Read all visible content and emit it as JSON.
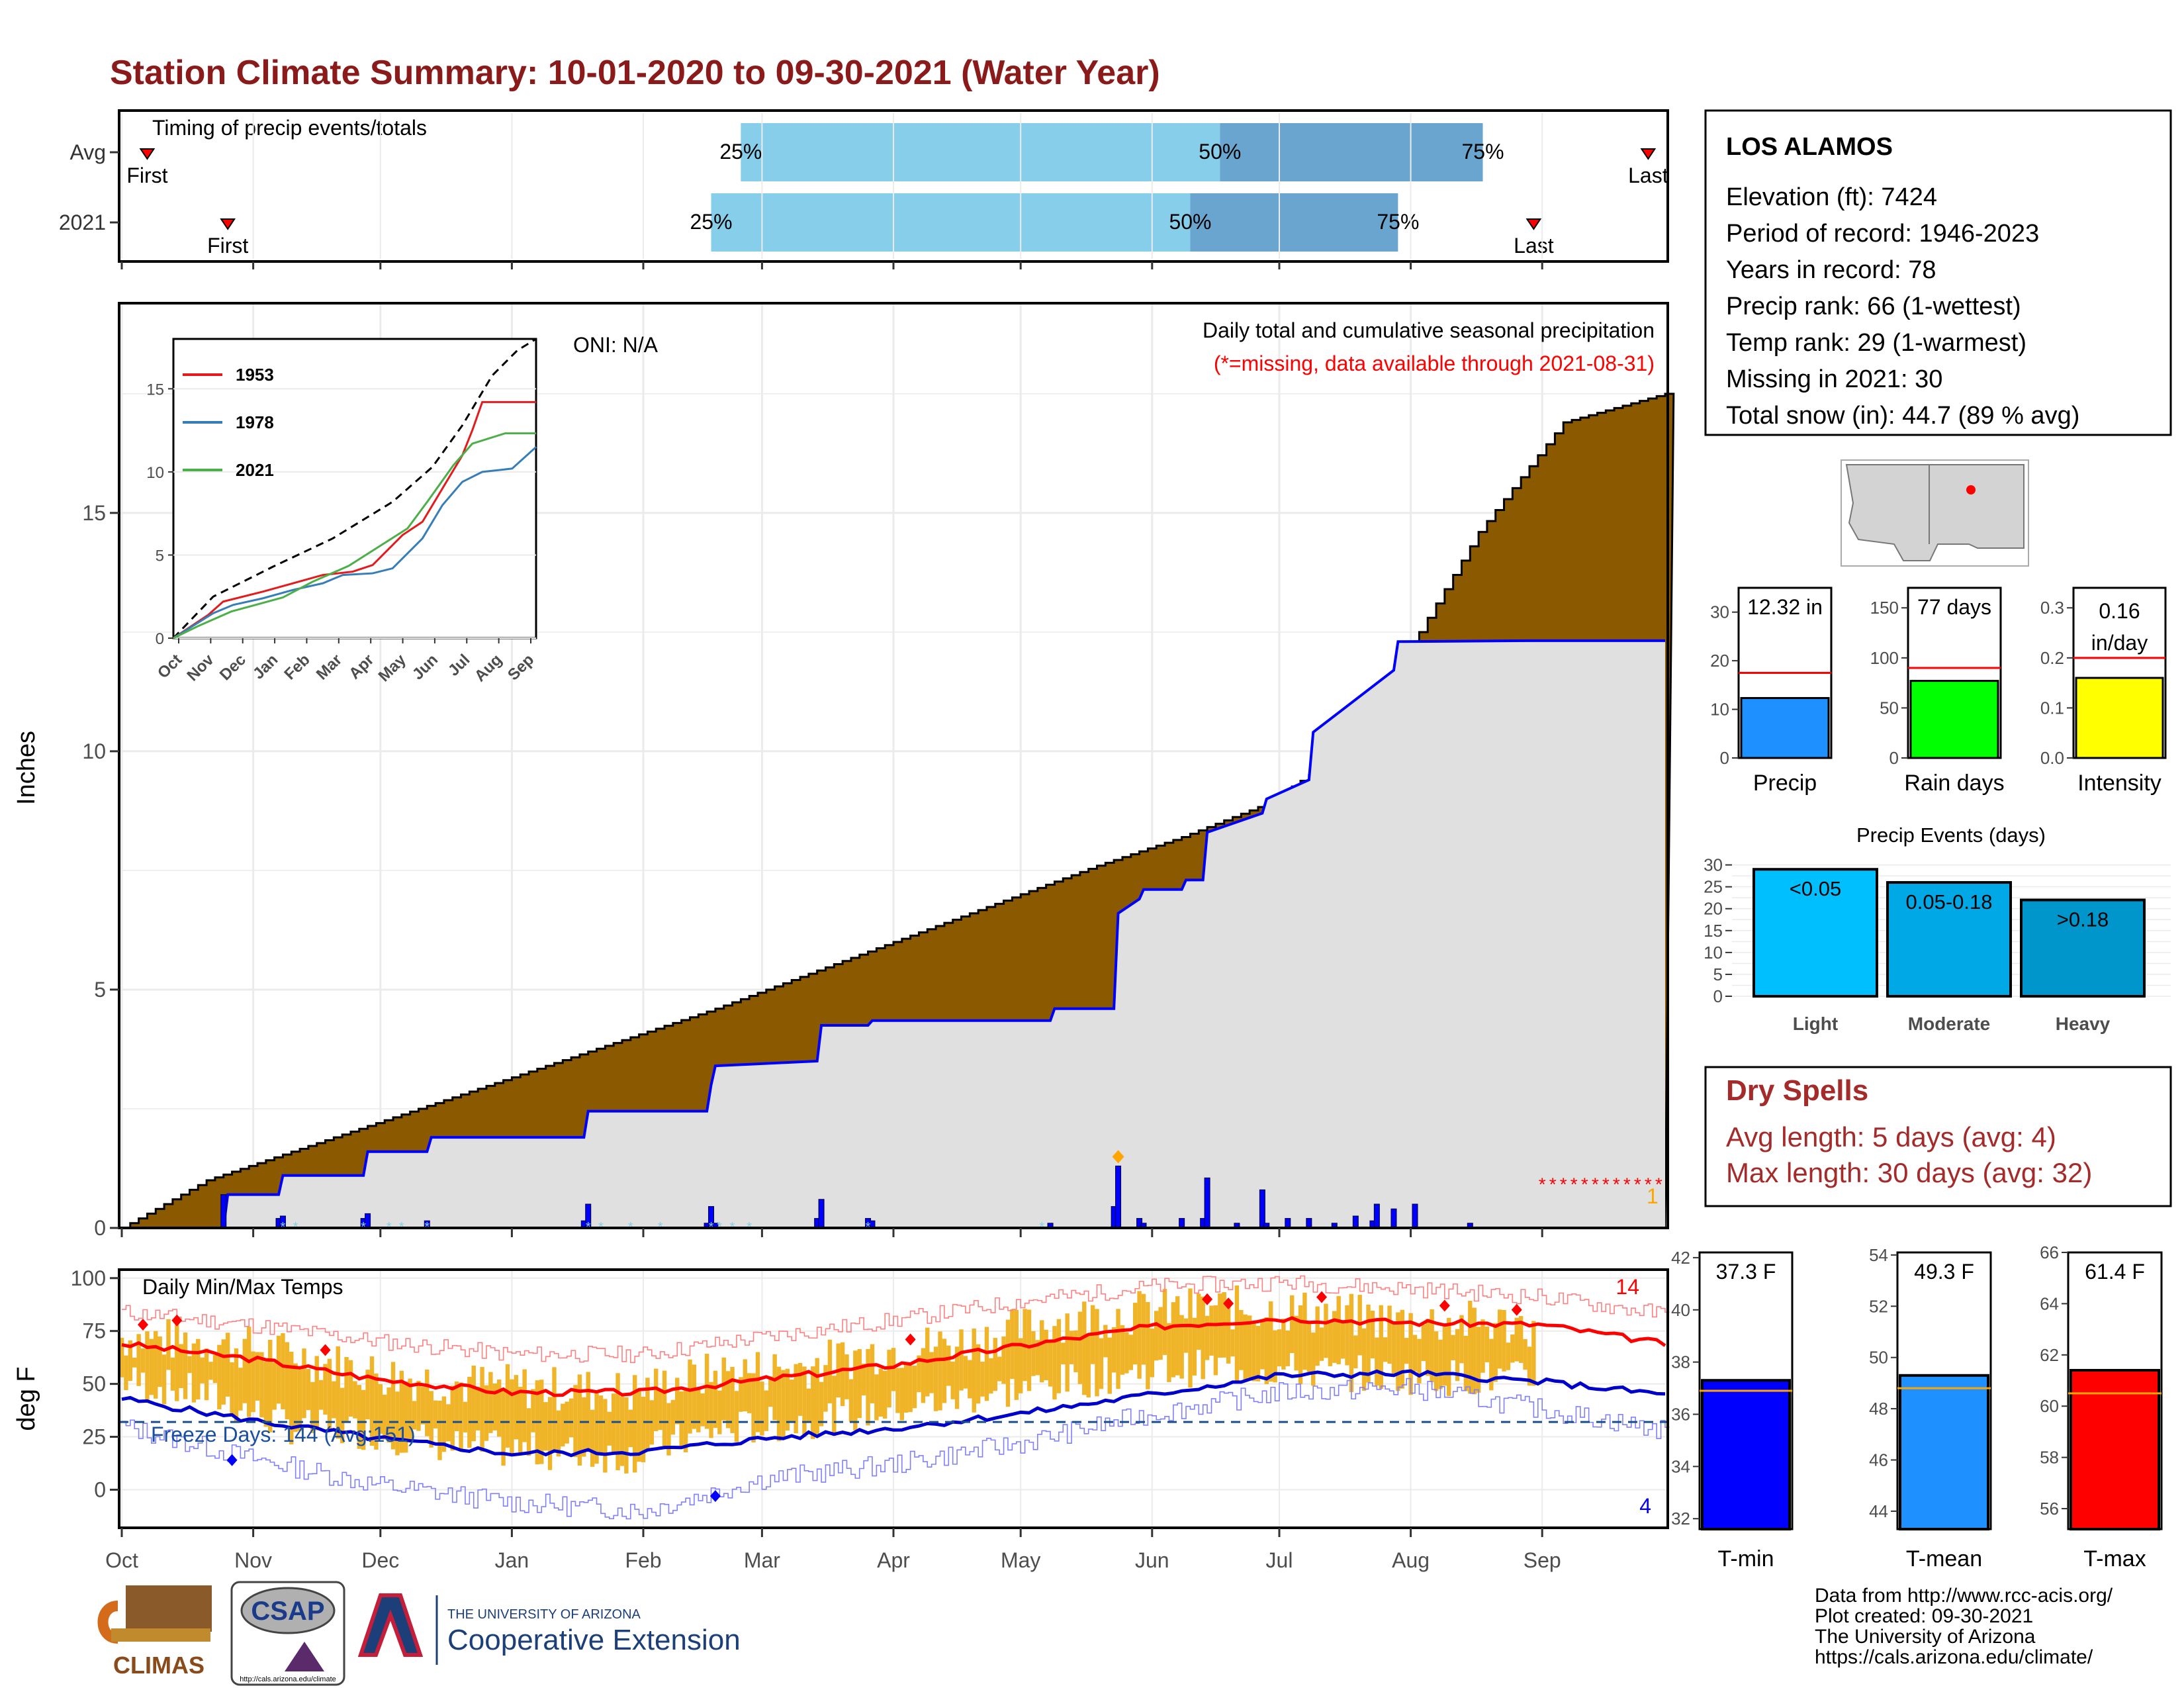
{
  "page": {
    "title": "Station Climate Summary: 10-01-2020 to 09-30-2021 (Water Year)",
    "colors": {
      "title": "#8b1a1a",
      "cumulative_avg": "#8b5a00",
      "cumulative_2021": "#0000ff",
      "missing": "#ff0000",
      "temp_bar": "#f0b428",
      "tmax_avg": "#ff0000",
      "tmin_avg": "#0000cc",
      "light_blue": "#87ceeb",
      "mid_blue": "#6aa5d0"
    }
  },
  "timing": {
    "label": "Timing of precip events/totals",
    "rows": [
      {
        "name": "Avg",
        "first": "First",
        "last": "Last",
        "p25": "25%",
        "p50": "50%",
        "p75": "75%",
        "first_day": 6,
        "last_day": 360,
        "p25_day": 146,
        "p50_day": 259,
        "p75_day": 321
      },
      {
        "name": "2021",
        "first": "First",
        "last": "Last",
        "p25": "25%",
        "p50": "50%",
        "p75": "75%",
        "first_day": 25,
        "last_day": 333,
        "p25_day": 139,
        "p50_day": 252,
        "p75_day": 301
      }
    ]
  },
  "chart_data": [
    {
      "id": "cumulative_precip",
      "type": "area",
      "ylabel": "Inches",
      "ylim": [
        0,
        19.4
      ],
      "yticks": [
        0,
        5,
        10,
        15
      ],
      "months": [
        "Oct",
        "Nov",
        "Dec",
        "Jan",
        "Feb",
        "Mar",
        "Apr",
        "May",
        "Jun",
        "Jul",
        "Aug",
        "Sep"
      ],
      "month_start_days": [
        0,
        31,
        61,
        92,
        123,
        151,
        182,
        212,
        243,
        273,
        304,
        335
      ],
      "title": "Daily total and cumulative seasonal precipitation",
      "subtitle": "(*=missing, data available through 2021-08-31)",
      "oni": "ONI: N/A",
      "missing_end_label": "1",
      "avg_cumulative": {
        "x": [
          0,
          20,
          50,
          80,
          110,
          140,
          170,
          200,
          230,
          250,
          270,
          280,
          300,
          320,
          340,
          364
        ],
        "y": [
          0,
          1.0,
          1.9,
          2.8,
          3.7,
          4.6,
          5.6,
          6.6,
          7.6,
          8.2,
          8.9,
          9.5,
          11.6,
          14.6,
          16.9,
          17.5
        ]
      },
      "cumulative_2021": {
        "x": [
          0,
          24,
          25,
          37,
          38,
          57,
          58,
          72,
          73,
          109,
          110,
          138,
          139,
          140,
          164,
          165,
          176,
          177,
          219,
          220,
          234,
          235,
          240,
          241,
          250,
          251,
          255,
          256,
          269,
          270,
          280,
          281,
          300,
          301,
          333,
          364
        ],
        "y": [
          0,
          0,
          0.7,
          0.7,
          1.1,
          1.1,
          1.6,
          1.6,
          1.9,
          1.9,
          2.45,
          2.45,
          3.0,
          3.4,
          3.5,
          4.25,
          4.25,
          4.35,
          4.35,
          4.6,
          4.6,
          6.6,
          6.9,
          7.1,
          7.1,
          7.3,
          7.3,
          8.3,
          8.7,
          9.0,
          9.4,
          10.4,
          11.7,
          12.3,
          12.32,
          12.32
        ]
      },
      "daily_2021": {
        "x": [
          24,
          37,
          38,
          57,
          58,
          72,
          109,
          110,
          138,
          139,
          140,
          164,
          165,
          176,
          177,
          219,
          234,
          235,
          240,
          241,
          250,
          255,
          256,
          263,
          269,
          270,
          275,
          280,
          286,
          291,
          295,
          296,
          300,
          305,
          318
        ],
        "y": [
          0.7,
          0.2,
          0.25,
          0.2,
          0.3,
          0.15,
          0.15,
          0.5,
          0.1,
          0.45,
          0.1,
          0.2,
          0.6,
          0.2,
          0.15,
          0.1,
          0.45,
          1.3,
          0.2,
          0.1,
          0.2,
          0.2,
          1.05,
          0.1,
          0.8,
          0.1,
          0.2,
          0.2,
          0.1,
          0.25,
          0.15,
          0.5,
          0.4,
          0.5,
          0.1
        ]
      },
      "missing_days": [
        335,
        364
      ]
    },
    {
      "id": "inset_cumulative",
      "type": "line",
      "ylim": [
        0,
        18
      ],
      "yticks": [
        0,
        5,
        10,
        15
      ],
      "xlabels": [
        "Oct",
        "Nov",
        "Dec",
        "Jan",
        "Feb",
        "Mar",
        "Apr",
        "May",
        "Jun",
        "Jul",
        "Aug",
        "Sep"
      ],
      "series": [
        {
          "name": "1953",
          "color": "#e41a1c",
          "x": [
            0,
            35,
            50,
            90,
            120,
            150,
            180,
            200,
            230,
            250,
            270,
            290,
            300,
            310,
            330,
            364
          ],
          "y": [
            0,
            1.4,
            2.2,
            2.8,
            3.3,
            3.8,
            4.0,
            4.4,
            6.2,
            7.0,
            9.0,
            11.0,
            12.5,
            14.2,
            14.2,
            14.2
          ]
        },
        {
          "name": "1978",
          "color": "#377eb8",
          "x": [
            0,
            40,
            60,
            90,
            120,
            150,
            170,
            200,
            220,
            250,
            270,
            290,
            310,
            340,
            364
          ],
          "y": [
            0,
            1.5,
            2.0,
            2.4,
            2.9,
            3.3,
            3.8,
            3.9,
            4.2,
            6.0,
            8.0,
            9.4,
            10.0,
            10.2,
            11.5
          ]
        },
        {
          "name": "2021",
          "color": "#4daf4a",
          "x": [
            0,
            24,
            58,
            110,
            140,
            176,
            235,
            256,
            281,
            300,
            333,
            364
          ],
          "y": [
            0,
            0.7,
            1.6,
            2.45,
            3.4,
            4.35,
            6.6,
            8.3,
            10.4,
            11.7,
            12.32,
            12.32
          ]
        }
      ],
      "max_line": {
        "x": [
          0,
          40,
          100,
          160,
          220,
          260,
          290,
          320,
          345,
          364
        ],
        "y": [
          0,
          2.5,
          4.3,
          6.0,
          8.2,
          10.3,
          12.8,
          15.8,
          17.3,
          18.0
        ]
      }
    },
    {
      "id": "daily_temps",
      "type": "bar",
      "title": "Daily Min/Max Temps",
      "ylabel": "deg F",
      "ylim": [
        -18,
        104
      ],
      "yticks": [
        0,
        25,
        50,
        75,
        100
      ],
      "freeze_label": "Freeze Days: 144 (Avg:151)",
      "freeze_line": 32,
      "record_high_count": "14",
      "record_low_count": "4",
      "avg_tmax": {
        "x": [
          0,
          30,
          61,
          92,
          123,
          151,
          182,
          212,
          243,
          273,
          304,
          335,
          364
        ],
        "y": [
          69,
          62,
          52,
          46,
          46,
          52,
          59,
          68,
          77,
          81,
          79,
          78,
          69
        ]
      },
      "avg_tmin": {
        "x": [
          0,
          30,
          61,
          92,
          123,
          151,
          182,
          212,
          243,
          273,
          304,
          335,
          364
        ],
        "y": [
          43,
          33,
          24,
          17,
          18,
          24,
          29,
          36,
          45,
          54,
          55,
          51,
          45
        ]
      },
      "record_max_env": {
        "x": [
          0,
          30,
          61,
          92,
          123,
          151,
          182,
          212,
          243,
          273,
          304,
          335,
          364
        ],
        "y": [
          84,
          78,
          70,
          64,
          64,
          72,
          80,
          89,
          96,
          98,
          95,
          91,
          83
        ]
      },
      "record_min_env": {
        "x": [
          0,
          30,
          61,
          92,
          123,
          151,
          182,
          212,
          243,
          273,
          304,
          335,
          364
        ],
        "y": [
          30,
          15,
          2,
          -6,
          -10,
          5,
          12,
          22,
          36,
          46,
          48,
          38,
          28
        ]
      },
      "daily_hi": {
        "x": [
          0,
          20,
          40,
          60,
          80,
          100,
          120,
          140,
          160,
          180,
          200,
          220,
          240,
          260,
          280,
          300,
          333
        ],
        "y": [
          72,
          70,
          64,
          55,
          50,
          48,
          46,
          55,
          58,
          66,
          70,
          80,
          84,
          86,
          84,
          80,
          78
        ]
      },
      "daily_lo": {
        "x": [
          0,
          20,
          40,
          60,
          80,
          100,
          120,
          140,
          160,
          180,
          200,
          220,
          240,
          260,
          280,
          300,
          333
        ],
        "y": [
          52,
          45,
          30,
          27,
          20,
          18,
          16,
          28,
          32,
          38,
          44,
          50,
          56,
          58,
          56,
          54,
          52
        ]
      }
    },
    {
      "id": "precip_totals",
      "type": "bar",
      "bars": [
        {
          "name": "Precip",
          "value": 12.32,
          "label": "12.32 in",
          "avg": 17.5,
          "ymax": 35,
          "yticks": [
            0,
            10,
            20,
            30
          ],
          "color": "#1e90ff"
        },
        {
          "name": "Rain days",
          "value": 77,
          "label": "77 days",
          "avg": 90,
          "ymax": 170,
          "yticks": [
            0,
            50,
            100,
            150
          ],
          "color": "#00ff00"
        },
        {
          "name": "Intensity",
          "value": 0.16,
          "label_lines": [
            "0.16",
            "in/day"
          ],
          "avg": 0.2,
          "ymax": 0.34,
          "yticks": [
            "0.0",
            "0.1",
            "0.2",
            "0.3"
          ],
          "color": "#ffff00"
        }
      ]
    },
    {
      "id": "precip_events",
      "type": "bar",
      "title": "Precip Events (days)",
      "categories": [
        "Light",
        "Moderate",
        "Heavy"
      ],
      "values": [
        29,
        26,
        22
      ],
      "labels": [
        "<0.05",
        "0.05-0.18",
        ">0.18"
      ],
      "yticks": [
        0,
        5,
        10,
        15,
        20,
        25,
        30
      ],
      "ylim": [
        0,
        31
      ],
      "colors": [
        "#00bfff",
        "#00a8e6",
        "#0096cc"
      ]
    },
    {
      "id": "temp_totals",
      "type": "bar",
      "bars": [
        {
          "name": "T-min",
          "value": 37.3,
          "label": "37.3 F",
          "avg": 36.9,
          "ylim": [
            31.6,
            42.2
          ],
          "yticks": [
            32,
            34,
            36,
            38,
            40,
            42
          ],
          "color": "#0000ff"
        },
        {
          "name": "T-mean",
          "value": 49.3,
          "label": "49.3 F",
          "avg": 48.8,
          "ylim": [
            43.3,
            54.1
          ],
          "yticks": [
            44,
            46,
            48,
            50,
            52,
            54
          ],
          "color": "#1e90ff"
        },
        {
          "name": "T-max",
          "value": 61.4,
          "label": "61.4 F",
          "avg": 60.5,
          "ylim": [
            55.2,
            66.0
          ],
          "yticks": [
            56,
            58,
            60,
            62,
            64,
            66
          ],
          "color": "#ff0000"
        }
      ]
    }
  ],
  "station": {
    "name": "LOS ALAMOS",
    "lines": [
      "Elevation (ft): 7424",
      "Period of record: 1946-2023",
      "Years in record: 78",
      "Precip rank: 66 (1-wettest)",
      "Temp rank: 29 (1-warmest)",
      "Missing in 2021: 30",
      "Total snow (in): 44.7 (89 % avg)"
    ]
  },
  "dry_spells": {
    "title": "Dry Spells",
    "avg_length": "Avg length: 5 days (avg: 4)",
    "max_length": "Max length: 30 days (avg: 32)"
  },
  "footer": {
    "lines": [
      "Data from http://www.rcc-acis.org/",
      "Plot created: 09-30-2021",
      "The University of Arizona",
      "https://cals.arizona.edu/climate/"
    ]
  },
  "logos": {
    "climas": "CLIMAS",
    "csap": "CSAP",
    "csap_url": "http://cals.arizona.edu/climate",
    "ua_small": "THE UNIVERSITY OF ARIZONA",
    "ua_big": "Cooperative Extension"
  }
}
